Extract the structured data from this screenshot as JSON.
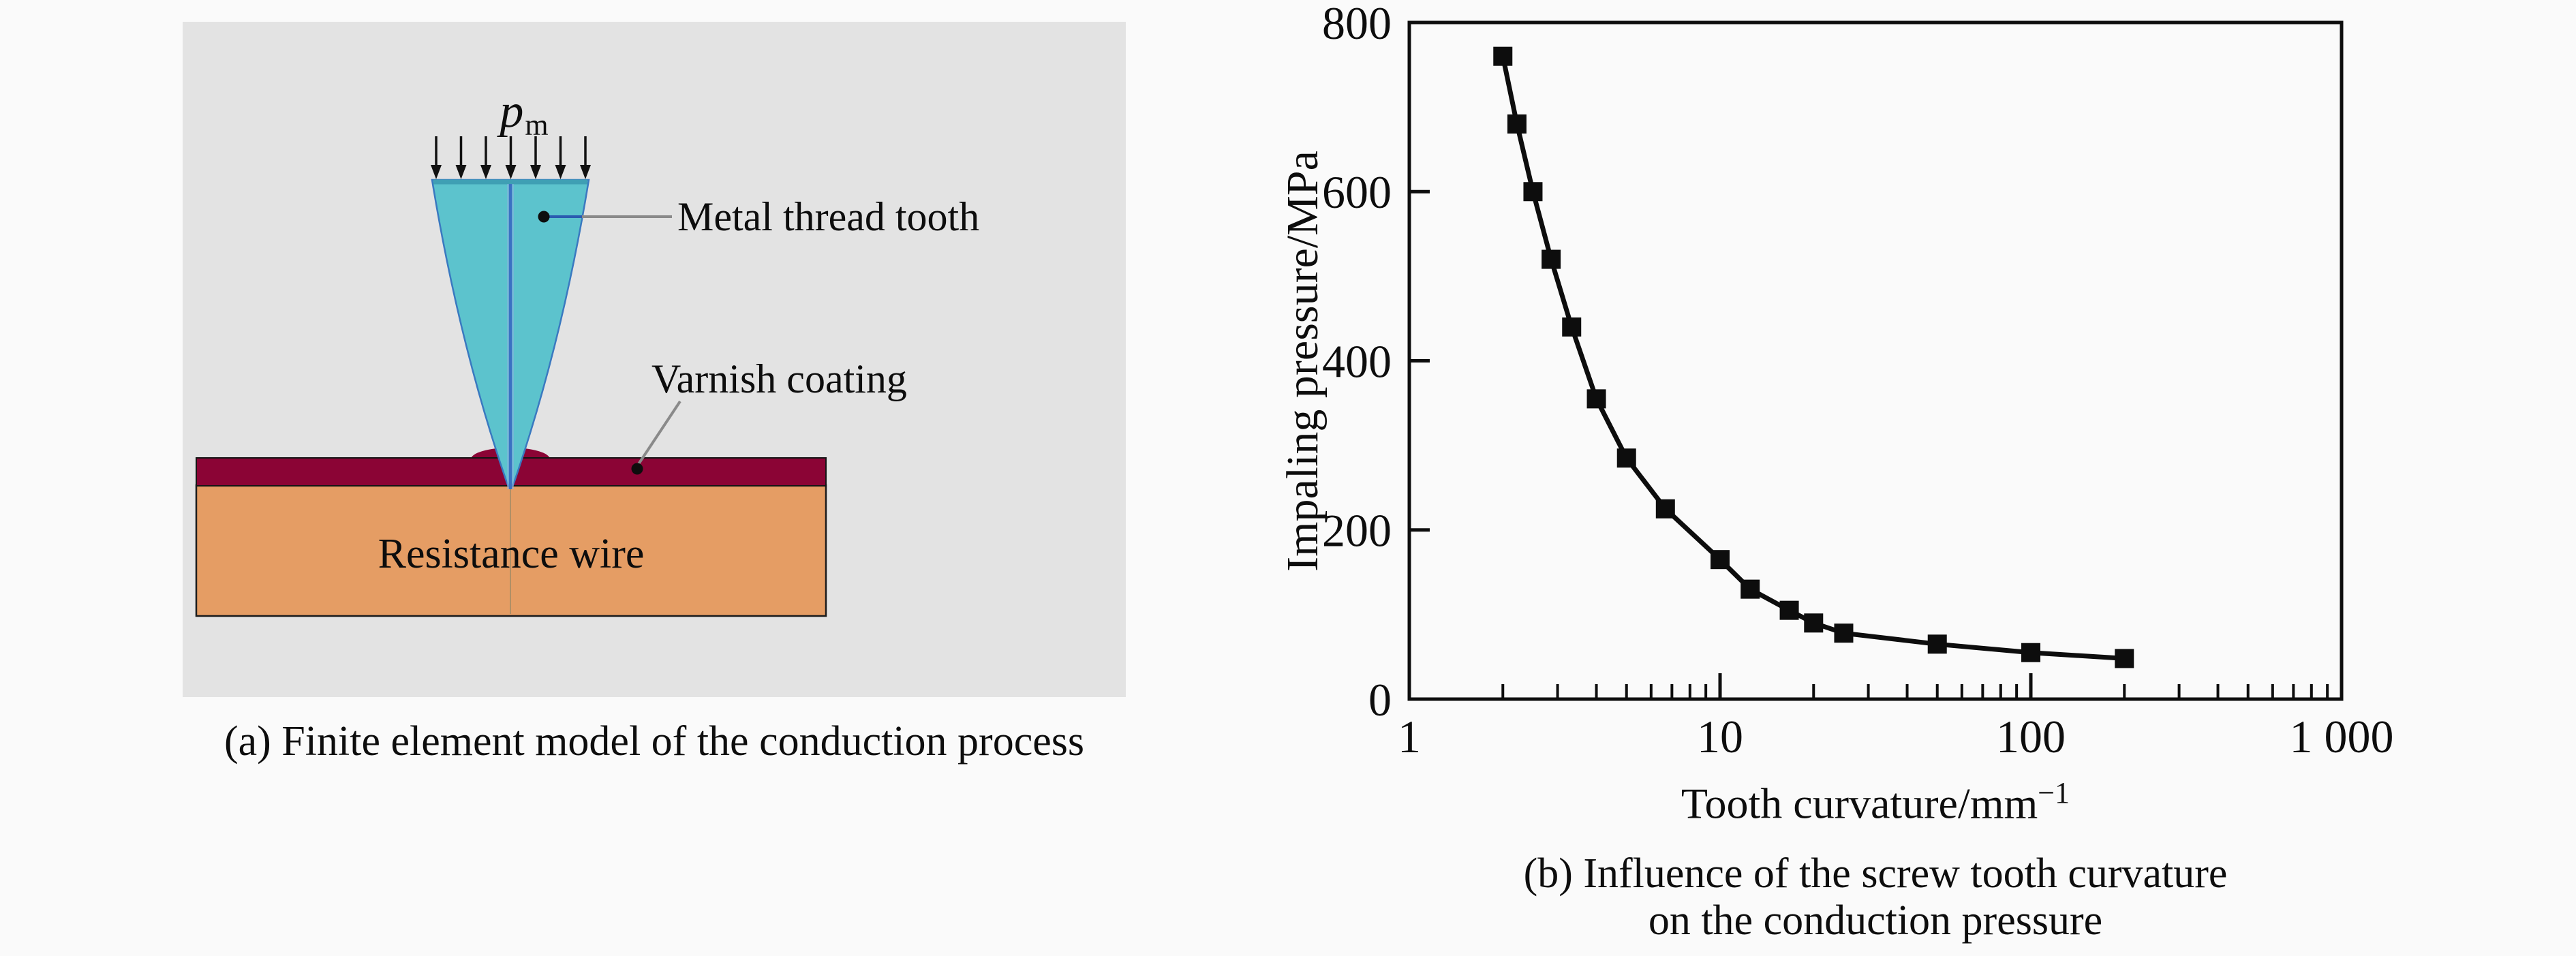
{
  "panel_a": {
    "caption": "(a) Finite element model of the conduction process",
    "pressure_symbol": {
      "base": "p",
      "subscript": "m"
    },
    "label_tooth": "Metal thread tooth",
    "label_varnish": "Varnish coating",
    "label_wire": "Resistance wire",
    "colors": {
      "panel_bg": "#e3e3e3",
      "tooth_fill": "#5cc3cd",
      "tooth_outline": "#3a79c0",
      "tooth_center_line": "#3a72c2",
      "varnish": "#8b0435",
      "wire": "#e59d64",
      "wire_outline": "#1b1b1b",
      "leader_gray": "#8a8a8a",
      "arrow_black": "#111111"
    }
  },
  "panel_b": {
    "caption_line1": "(b) Influence of the screw tooth curvature",
    "caption_line2": "on the conduction pressure"
  },
  "chart_data": {
    "type": "line",
    "title": "",
    "xlabel": "Tooth curvature/mm⁻¹",
    "xlabel_parts": {
      "main": "Tooth curvature/mm",
      "superscript": "−1"
    },
    "ylabel": "Impaling pressure/MPa",
    "xscale": "log",
    "xlim": [
      1,
      1000
    ],
    "ylim": [
      0,
      800
    ],
    "xticks": {
      "values": [
        1,
        10,
        100,
        1000
      ],
      "labels": [
        "1",
        "10",
        "100",
        "1 000"
      ]
    },
    "yticks": {
      "values": [
        0,
        200,
        400,
        600,
        800
      ],
      "labels": [
        "0",
        "200",
        "400",
        "600",
        "800"
      ]
    },
    "grid": false,
    "legend": null,
    "marker": "square",
    "line_color": "#0d0d0d",
    "series": [
      {
        "name": "Impaling pressure",
        "x": [
          2,
          2.22,
          2.5,
          2.86,
          3.33,
          4,
          5,
          6.67,
          10,
          12.5,
          16.7,
          20,
          25,
          50,
          100,
          200
        ],
        "y": [
          760,
          680,
          600,
          520,
          440,
          355,
          285,
          225,
          165,
          130,
          105,
          90,
          78,
          65,
          55,
          48
        ]
      }
    ]
  }
}
